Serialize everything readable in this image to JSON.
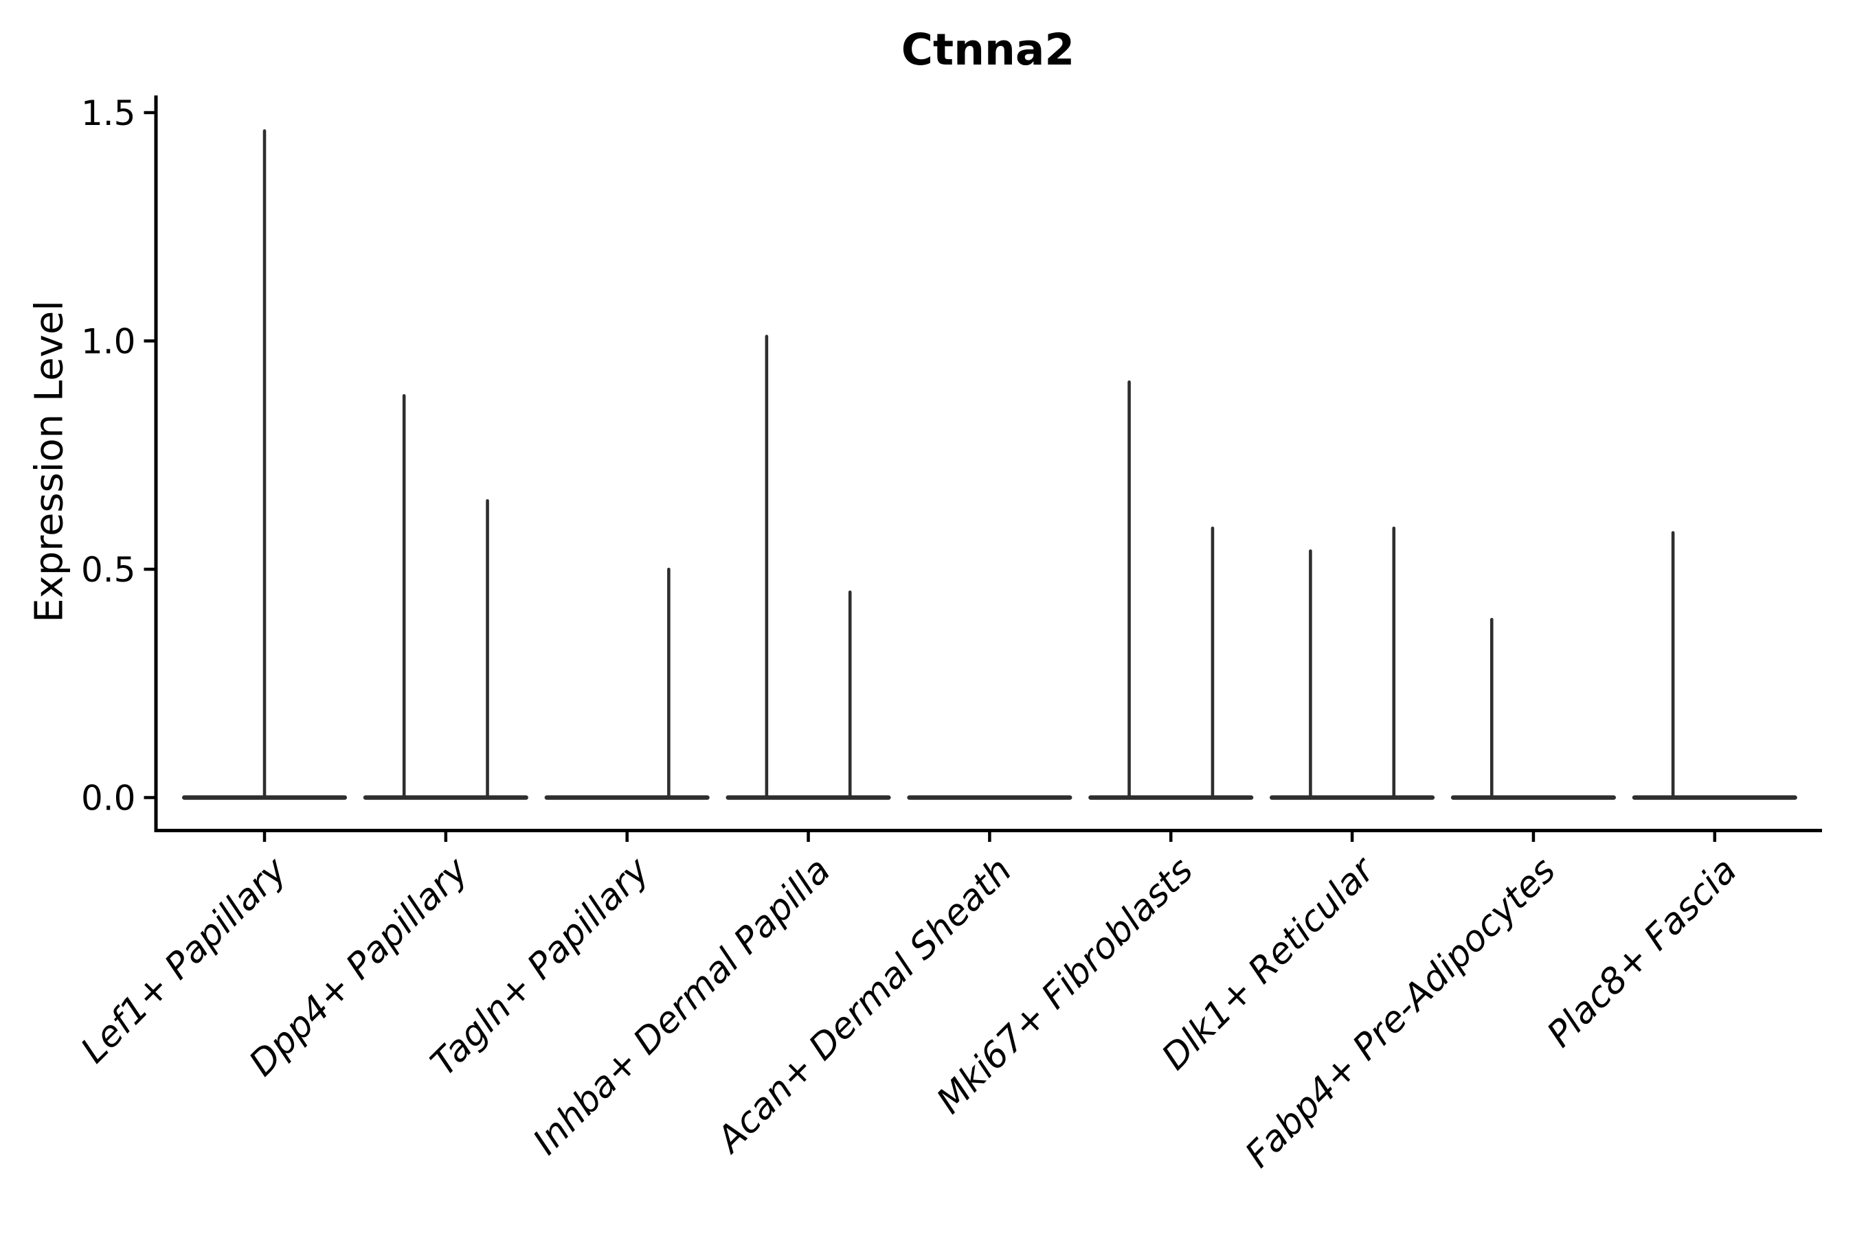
{
  "chart_data": {
    "type": "violin",
    "title": "Ctnna2",
    "ylabel": "Expression Level",
    "xlabel": "",
    "ytick_labels": [
      "0.0",
      "0.5",
      "1.0",
      "1.5"
    ],
    "ytick_values": [
      0.0,
      0.5,
      1.0,
      1.5
    ],
    "ylim": [
      -0.072,
      1.538
    ],
    "grid": false,
    "legend": "none",
    "x_tick_rotation_deg": 45,
    "categories": [
      "Lef1+ Papillary",
      "Dpp4+ Papillary",
      "Tagln+ Papillary",
      "Inhba+ Dermal Papilla",
      "Acan+ Dermal Sheath",
      "Mki67+ Fibroblasts",
      "Dlk1+ Reticular",
      "Fabp4+ Pre-Adipocytes",
      "Plac8+ Fascia"
    ],
    "violins": [
      {
        "category": "Lef1+ Papillary",
        "flat_base_at_zero": true,
        "spikes": [
          {
            "position": "center",
            "max": 1.46
          }
        ]
      },
      {
        "category": "Dpp4+ Papillary",
        "flat_base_at_zero": true,
        "spikes": [
          {
            "position": "left",
            "max": 0.88
          },
          {
            "position": "right",
            "max": 0.65
          }
        ]
      },
      {
        "category": "Tagln+ Papillary",
        "flat_base_at_zero": true,
        "spikes": [
          {
            "position": "right",
            "max": 0.5
          }
        ]
      },
      {
        "category": "Inhba+ Dermal Papilla",
        "flat_base_at_zero": true,
        "spikes": [
          {
            "position": "left",
            "max": 1.01
          },
          {
            "position": "right",
            "max": 0.45
          }
        ]
      },
      {
        "category": "Acan+ Dermal Sheath",
        "flat_base_at_zero": true,
        "spikes": []
      },
      {
        "category": "Mki67+ Fibroblasts",
        "flat_base_at_zero": true,
        "spikes": [
          {
            "position": "left",
            "max": 0.91
          },
          {
            "position": "right",
            "max": 0.59
          }
        ]
      },
      {
        "category": "Dlk1+ Reticular",
        "flat_base_at_zero": true,
        "spikes": [
          {
            "position": "left",
            "max": 0.54
          },
          {
            "position": "right",
            "max": 0.59
          }
        ]
      },
      {
        "category": "Fabp4+ Pre-Adipocytes",
        "flat_base_at_zero": true,
        "spikes": [
          {
            "position": "left",
            "max": 0.39
          }
        ]
      },
      {
        "category": "Plac8+ Fascia",
        "flat_base_at_zero": true,
        "spikes": [
          {
            "position": "left",
            "max": 0.58
          }
        ]
      }
    ],
    "layout_hints": {
      "dodge_offset_frac": 0.23,
      "base_halfwidth_frac": 0.455
    },
    "colors": {
      "violin": "#2e2e2e",
      "axis": "#000000",
      "text": "#000000",
      "background": "#ffffff"
    }
  }
}
